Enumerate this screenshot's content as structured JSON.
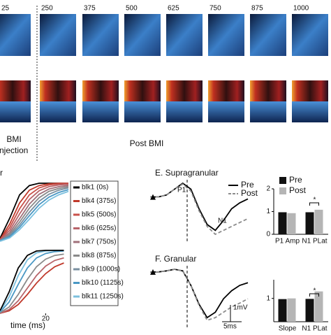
{
  "figure": {
    "frame_times": [
      "25",
      "250",
      "375",
      "500",
      "625",
      "750",
      "875",
      "1000"
    ],
    "label_bmi": "BMI",
    "label_injection": "Injection",
    "label_post": "Post BMI",
    "panel_d_fragment": "r"
  },
  "chart_data": [
    {
      "type": "line",
      "x": [
        0,
        4,
        8,
        12,
        16,
        20,
        24,
        28
      ],
      "series": [
        {
          "name": "blk1 (0s)",
          "color": "#000000",
          "values": [
            0.05,
            0.4,
            0.8,
            0.96,
            1,
            1,
            1,
            1
          ]
        },
        {
          "name": "blk4 (375s)",
          "color": "#c0392b",
          "values": [
            0.03,
            0.3,
            0.66,
            0.88,
            0.96,
            0.99,
            1,
            1
          ]
        },
        {
          "name": "blk5 (500s)",
          "color": "#c9514a",
          "values": [
            0.02,
            0.24,
            0.56,
            0.8,
            0.92,
            0.97,
            0.99,
            1
          ]
        },
        {
          "name": "blk6 (625s)",
          "color": "#b8646a",
          "values": [
            0.02,
            0.19,
            0.47,
            0.72,
            0.87,
            0.94,
            0.97,
            0.98
          ]
        },
        {
          "name": "blk7 (750s)",
          "color": "#a0707a",
          "values": [
            0.01,
            0.15,
            0.39,
            0.64,
            0.81,
            0.9,
            0.94,
            0.96
          ]
        },
        {
          "name": "blk8 (875s)",
          "color": "#8a8a8a",
          "values": [
            0.01,
            0.12,
            0.33,
            0.57,
            0.75,
            0.86,
            0.91,
            0.94
          ]
        },
        {
          "name": "blk9 (1000s)",
          "color": "#7a8fa0",
          "values": [
            0.01,
            0.1,
            0.28,
            0.5,
            0.69,
            0.81,
            0.88,
            0.92
          ]
        },
        {
          "name": "blk10 (1125s)",
          "color": "#4a98c4",
          "values": [
            0.01,
            0.08,
            0.24,
            0.44,
            0.63,
            0.76,
            0.84,
            0.89
          ]
        },
        {
          "name": "blk11 (1250s)",
          "color": "#7cc0de",
          "values": [
            0.0,
            0.06,
            0.2,
            0.38,
            0.57,
            0.71,
            0.8,
            0.86
          ]
        }
      ]
    },
    {
      "type": "line",
      "x": [
        0,
        4,
        8,
        12,
        16,
        20,
        24,
        28
      ],
      "x_label": "time (ms)",
      "xlim": [
        0,
        30
      ],
      "xticks": [
        20
      ],
      "series": [
        {
          "color": "#c0392b",
          "values": [
            0.0,
            0.04,
            0.14,
            0.3,
            0.48,
            0.63,
            0.74,
            0.8
          ]
        },
        {
          "color": "#b8646a",
          "values": [
            0.0,
            0.06,
            0.2,
            0.4,
            0.6,
            0.75,
            0.84,
            0.88
          ]
        },
        {
          "color": "#8a8a8a",
          "values": [
            0.01,
            0.1,
            0.3,
            0.54,
            0.74,
            0.86,
            0.92,
            0.94
          ]
        },
        {
          "color": "#4a98c4",
          "values": [
            0.02,
            0.18,
            0.46,
            0.72,
            0.88,
            0.95,
            0.98,
            0.99
          ]
        },
        {
          "color": "#7cc0de",
          "values": [
            0.03,
            0.26,
            0.6,
            0.85,
            0.96,
            0.99,
            1,
            1
          ]
        },
        {
          "color": "#000000",
          "values": [
            0.04,
            0.34,
            0.72,
            0.92,
            0.99,
            1,
            1,
            1
          ]
        }
      ]
    },
    {
      "type": "line",
      "title": "E. Supragranular",
      "legend": true,
      "annotations": [
        "P1",
        "N1"
      ],
      "x": [
        0,
        1,
        2,
        3,
        4,
        5,
        6,
        7,
        8,
        9,
        10,
        11,
        12
      ],
      "series": [
        {
          "name": "Pre",
          "color": "#000000",
          "values": [
            0,
            0,
            0.05,
            0.2,
            0.35,
            0.2,
            -0.3,
            -0.7,
            -0.85,
            -0.6,
            -0.3,
            -0.15,
            -0.05
          ]
        },
        {
          "name": "Post",
          "color": "#8c8c8c",
          "dash": true,
          "values": [
            0,
            0,
            0.05,
            0.2,
            0.33,
            0.15,
            -0.35,
            -0.75,
            -0.95,
            -0.85,
            -0.75,
            -0.65,
            -0.55
          ]
        }
      ]
    },
    {
      "type": "line",
      "title": "F. Granular",
      "legend": false,
      "annotations": [
        "1mV",
        "5ms"
      ],
      "x": [
        0,
        1,
        2,
        3,
        4,
        5,
        6,
        7,
        8,
        9,
        10,
        11,
        12
      ],
      "series": [
        {
          "color": "#000000",
          "values": [
            0,
            0,
            0.02,
            0.05,
            0.02,
            -0.25,
            -0.6,
            -0.85,
            -0.75,
            -0.5,
            -0.35,
            -0.25,
            -0.2
          ]
        },
        {
          "color": "#8c8c8c",
          "dash": true,
          "values": [
            0,
            0,
            0.02,
            0.05,
            0.02,
            -0.25,
            -0.62,
            -0.9,
            -0.85,
            -0.75,
            -0.65,
            -0.58,
            -0.5
          ]
        }
      ]
    },
    {
      "type": "bar",
      "legend": true,
      "annotations": [
        "*"
      ],
      "categories": [
        "P1 Amp",
        "N1 PLat"
      ],
      "ylim": [
        0,
        2
      ],
      "yticks": [
        0,
        1,
        2
      ],
      "series": [
        {
          "name": "Pre",
          "color": "#111111",
          "values": [
            0.97,
            0.97
          ]
        },
        {
          "name": "Post",
          "color": "#b5b5b5",
          "values": [
            0.93,
            1.08
          ]
        }
      ]
    },
    {
      "type": "bar",
      "legend": false,
      "annotations": [
        "*"
      ],
      "categories": [
        "Slope",
        "N1 PLat"
      ],
      "ylim": [
        0,
        1.8
      ],
      "yticks": [
        1
      ],
      "series": [
        {
          "color": "#111111",
          "values": [
            0.97,
            0.98
          ]
        },
        {
          "color": "#b5b5b5",
          "values": [
            1.0,
            1.3
          ]
        }
      ]
    }
  ]
}
